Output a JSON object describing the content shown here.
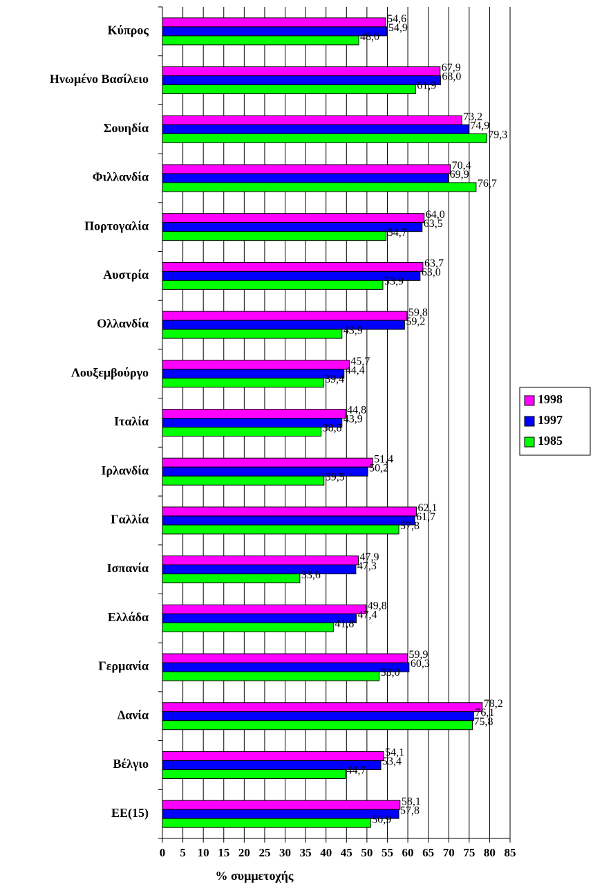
{
  "chart_data": {
    "type": "bar",
    "orientation": "horizontal",
    "categories": [
      "Κύπρος",
      "Ηνωμένο Βασίλειο",
      "Σουηδία",
      "Φιλλανδία",
      "Πορτογαλία",
      "Αυστρία",
      "Ολλανδία",
      "Λουξεμβούργο",
      "Ιταλία",
      "Ιρλανδία",
      "Γαλλία",
      "Ισπανία",
      "Ελλάδα",
      "Γερμανία",
      "Δανία",
      "Βέλγιο",
      "ΕΕ(15)"
    ],
    "series": [
      {
        "name": "1998",
        "color": "#ff00ff",
        "values": [
          54.6,
          67.9,
          73.2,
          70.4,
          64.0,
          63.7,
          59.8,
          45.7,
          44.8,
          51.4,
          62.1,
          47.9,
          49.8,
          59.9,
          78.2,
          54.1,
          58.1
        ],
        "value_labels": [
          "54,6",
          "67,9",
          "73,2",
          "70,4",
          "64,0",
          "63,7",
          "59,8",
          "45,7",
          "44,8",
          "51,4",
          "62,1",
          "47,9",
          "49,8",
          "59,9",
          "78,2",
          "54,1",
          "58,1"
        ]
      },
      {
        "name": "1997",
        "color": "#0000ff",
        "values": [
          54.9,
          68.0,
          74.9,
          69.9,
          63.5,
          63.0,
          59.2,
          44.4,
          43.9,
          50.2,
          61.7,
          47.3,
          47.4,
          60.3,
          76.1,
          53.4,
          57.8
        ],
        "value_labels": [
          "54,9",
          "68,0",
          "74,9",
          "69,9",
          "63,5",
          "63,0",
          "59,2",
          "44,4",
          "43,9",
          "50,2",
          "61,7",
          "47,3",
          "47,4",
          "60,3",
          "76,1",
          "53,4",
          "57,8"
        ]
      },
      {
        "name": "1985",
        "color": "#00ff00",
        "values": [
          48.0,
          61.9,
          79.3,
          76.7,
          54.7,
          53.9,
          43.9,
          39.4,
          38.8,
          39.5,
          57.8,
          33.6,
          41.8,
          53.0,
          75.8,
          44.7,
          50.9
        ],
        "value_labels": [
          "48,0",
          "61,9",
          "79,3",
          "76,7",
          "54,7",
          "53,9",
          "43,9",
          "39,4",
          "38,8",
          "39,5",
          "57,8",
          "33,6",
          "41,8",
          "53,0",
          "75,8",
          "44,7",
          "50,9"
        ]
      }
    ],
    "xlabel": "% συμμετοχής",
    "xlim": [
      0,
      85
    ],
    "xticks": [
      0,
      5,
      10,
      15,
      20,
      25,
      30,
      35,
      40,
      45,
      50,
      55,
      60,
      65,
      70,
      75,
      80,
      85
    ],
    "grid": true,
    "legend": "right"
  }
}
